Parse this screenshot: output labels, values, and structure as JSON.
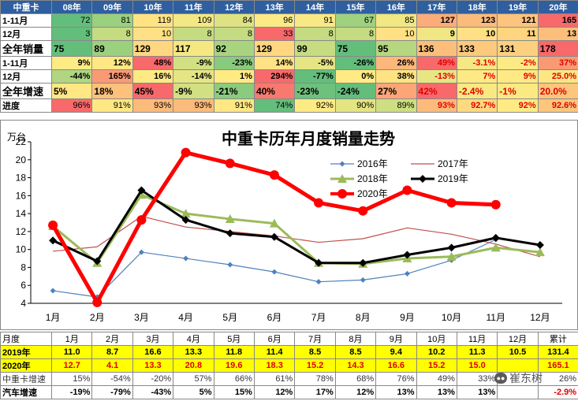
{
  "top_table": {
    "headers": [
      "中重卡",
      "08年",
      "09年",
      "10年",
      "11年",
      "12年",
      "13年",
      "14年",
      "15年",
      "16年",
      "17年",
      "18年",
      "19年",
      "20年"
    ],
    "rows": [
      {
        "label": "1-11月",
        "values": [
          "72",
          "81",
          "119",
          "109",
          "84",
          "96",
          "91",
          "67",
          "85",
          "127",
          "123",
          "121",
          "165"
        ],
        "align": "right",
        "bg": [
          "#63be7b",
          "#9bd07f",
          "#ffe383",
          "#f3e883",
          "#dfe282",
          "#fcea84",
          "#f9e984",
          "#9fd17f",
          "#f1e783",
          "#fbac78",
          "#fbbb7b",
          "#fcc47c",
          "#f8696b"
        ],
        "bold": [
          false,
          false,
          false,
          false,
          false,
          false,
          false,
          false,
          false,
          true,
          true,
          true,
          true
        ]
      },
      {
        "label": "12月",
        "values": [
          "3",
          "8",
          "10",
          "8",
          "8",
          "33",
          "8",
          "8",
          "10",
          "9",
          "10",
          "11",
          "13"
        ],
        "align": "right",
        "bg": [
          "#63be7b",
          "#c5db81",
          "#ffe084",
          "#c5db81",
          "#c5db81",
          "#f8696b",
          "#c5db81",
          "#c5db81",
          "#ffe084",
          "#f0e683",
          "#ffe084",
          "#fdd47f",
          "#fcbf7b"
        ],
        "bold": [
          false,
          false,
          false,
          false,
          false,
          false,
          false,
          false,
          false,
          true,
          true,
          true,
          true
        ]
      },
      {
        "label": "全年销量",
        "values": [
          "75",
          "89",
          "129",
          "117",
          "92",
          "129",
          "99",
          "75",
          "95",
          "136",
          "133",
          "131",
          "178"
        ],
        "align": "left",
        "bg": [
          "#63be7b",
          "#9bd07f",
          "#fed780",
          "#f5e883",
          "#a9d47f",
          "#fed780",
          "#c6dc81",
          "#63be7b",
          "#b4d780",
          "#fcbf7b",
          "#fcc97d",
          "#fdd07f",
          "#f8696b"
        ],
        "bold": [
          true,
          true,
          true,
          true,
          true,
          true,
          true,
          true,
          true,
          true,
          true,
          true,
          true
        ]
      },
      {
        "label": "1-11月",
        "values": [
          "9%",
          "12%",
          "48%",
          "-9%",
          "-23%",
          "14%",
          "-5%",
          "-26%",
          "26%",
          "49%",
          "-3.1%",
          "-2%",
          "37%"
        ],
        "align": "right",
        "bg": [
          "#ffeb84",
          "#ffe884",
          "#f8696b",
          "#d0e082",
          "#88cb7e",
          "#fee283",
          "#e6e583",
          "#63be7b",
          "#fcb87a",
          "#f8696b",
          "#f6e883",
          "#fcea84",
          "#fa9a75"
        ],
        "bold": [
          true,
          true,
          true,
          true,
          true,
          true,
          true,
          true,
          true,
          true,
          true,
          true,
          true
        ],
        "red": [
          false,
          false,
          false,
          false,
          false,
          false,
          false,
          false,
          false,
          true,
          true,
          true,
          true
        ]
      },
      {
        "label": "12月",
        "values": [
          "-44%",
          "165%",
          "16%",
          "-14%",
          "1%",
          "294%",
          "-77%",
          "0%",
          "38%",
          "-13%",
          "7%",
          "9%",
          "25.0%"
        ],
        "align": "right",
        "bg": [
          "#b1d580",
          "#fa9a75",
          "#fee983",
          "#e6e583",
          "#ffeb84",
          "#f8696b",
          "#63be7b",
          "#ffeb84",
          "#ffe383",
          "#e8e583",
          "#ffe984",
          "#ffe984",
          "#fee683"
        ],
        "bold": [
          true,
          true,
          true,
          true,
          true,
          true,
          true,
          true,
          true,
          true,
          true,
          true,
          true
        ],
        "red": [
          false,
          false,
          false,
          false,
          false,
          false,
          false,
          false,
          false,
          true,
          true,
          true,
          true
        ]
      },
      {
        "label": "全年增速",
        "values": [
          "5%",
          "18%",
          "45%",
          "-9%",
          "-21%",
          "40%",
          "-23%",
          "-24%",
          "27%",
          "42%",
          "-2.4%",
          "-1%",
          "20.0%"
        ],
        "align": "left",
        "bg": [
          "#ffe784",
          "#fdc17c",
          "#f8696b",
          "#d0e082",
          "#8bcb7e",
          "#f87a6e",
          "#6ec17c",
          "#63be7b",
          "#fca577",
          "#f8696b",
          "#f8e983",
          "#fbea84",
          "#fdc67d"
        ],
        "bold": [
          true,
          true,
          true,
          true,
          true,
          true,
          true,
          true,
          true,
          true,
          true,
          true,
          true
        ],
        "red": [
          false,
          false,
          false,
          false,
          false,
          false,
          false,
          false,
          false,
          true,
          true,
          true,
          true
        ]
      },
      {
        "label": "进度",
        "values": [
          "96%",
          "91%",
          "93%",
          "93%",
          "91%",
          "74%",
          "92%",
          "90%",
          "89%",
          "93%",
          "92.7%",
          "92%",
          "92.6%"
        ],
        "align": "right",
        "bg": [
          "#f8696b",
          "#ffe783",
          "#fcbb7b",
          "#fcbb7b",
          "#ffe783",
          "#63be7b",
          "#ffeb84",
          "#e4e483",
          "#cddf82",
          "#fcbb7b",
          "#ffd980",
          "#ffeb84",
          "#fcc67d"
        ],
        "bold": [
          false,
          false,
          false,
          false,
          false,
          false,
          false,
          false,
          false,
          true,
          true,
          true,
          true
        ],
        "red": [
          false,
          false,
          false,
          false,
          false,
          false,
          false,
          false,
          false,
          true,
          true,
          true,
          true
        ]
      }
    ]
  },
  "chart_data": {
    "type": "line",
    "title": "中重卡历年月度销量走势",
    "ylabel": "万台",
    "categories": [
      "1月",
      "2月",
      "3月",
      "4月",
      "5月",
      "6月",
      "7月",
      "8月",
      "9月",
      "10月",
      "11月",
      "12月"
    ],
    "ylim": [
      4,
      22
    ],
    "yticks": [
      4,
      6,
      8,
      10,
      12,
      14,
      16,
      18,
      20,
      22
    ],
    "grid": "none",
    "legend_position": "top-right",
    "series": [
      {
        "name": "2016年",
        "color": "#4f81bd",
        "width": 1.2,
        "marker": "diamond",
        "values": [
          5.4,
          4.7,
          9.7,
          9.0,
          8.3,
          7.5,
          6.4,
          6.6,
          7.3,
          8.8,
          11.1,
          null
        ]
      },
      {
        "name": "2017年",
        "color": "#c0504d",
        "width": 1.2,
        "marker": "none",
        "values": [
          9.8,
          10.3,
          13.7,
          12.5,
          12.0,
          11.5,
          10.8,
          11.2,
          12.4,
          11.7,
          10.6,
          9.2
        ]
      },
      {
        "name": "2018年",
        "color": "#9bbb59",
        "width": 3,
        "marker": "triangle",
        "values": [
          12.6,
          8.5,
          16.1,
          14.0,
          13.4,
          12.9,
          8.5,
          8.4,
          9.0,
          9.2,
          10.2,
          9.7
        ]
      },
      {
        "name": "2019年",
        "color": "#000000",
        "width": 3,
        "marker": "diamond",
        "values": [
          11.0,
          8.7,
          16.6,
          13.3,
          11.8,
          11.4,
          8.5,
          8.5,
          9.4,
          10.2,
          11.3,
          10.5
        ]
      },
      {
        "name": "2020年",
        "color": "#ff0000",
        "width": 5,
        "marker": "circle",
        "values": [
          12.7,
          4.1,
          13.3,
          20.8,
          19.6,
          18.3,
          15.2,
          14.3,
          16.6,
          15.2,
          15.0,
          null
        ]
      }
    ]
  },
  "bottom_table": {
    "headers": [
      "月度",
      "1月",
      "2月",
      "3月",
      "4月",
      "5月",
      "6月",
      "7月",
      "8月",
      "9月",
      "10月",
      "11月",
      "12月",
      "累计"
    ],
    "rows": [
      {
        "label": "2019年",
        "values": [
          "11.0",
          "8.7",
          "16.6",
          "13.3",
          "11.8",
          "11.4",
          "8.5",
          "8.5",
          "9.4",
          "10.2",
          "11.3",
          "10.5",
          "131.4"
        ],
        "bg": "#ffff00",
        "color": "#000",
        "bold": true
      },
      {
        "label": "2020年",
        "values": [
          "12.7",
          "4.1",
          "13.3",
          "20.8",
          "19.6",
          "18.3",
          "15.2",
          "14.3",
          "16.6",
          "15.2",
          "15.0",
          "",
          "165.1"
        ],
        "bg": "#ffff00",
        "color": "#e00000",
        "bold": true
      },
      {
        "label": "中重卡增速",
        "values": [
          "15%",
          "-54%",
          "-20%",
          "57%",
          "66%",
          "61%",
          "78%",
          "68%",
          "76%",
          "49%",
          "33%",
          "",
          "26%"
        ],
        "bg": "#ffffff",
        "color": "#333",
        "bold": false
      },
      {
        "label": "汽车增速",
        "values": [
          "-19%",
          "-79%",
          "-43%",
          "5%",
          "15%",
          "12%",
          "17%",
          "12%",
          "13%",
          "13%",
          "13%",
          "",
          "-2.9%"
        ],
        "bg": "#ffffff",
        "color": "#000",
        "bold": true,
        "last_color": "#e00000"
      }
    ]
  },
  "watermark": {
    "icon": "wechat-icon",
    "text": "崔东树"
  }
}
